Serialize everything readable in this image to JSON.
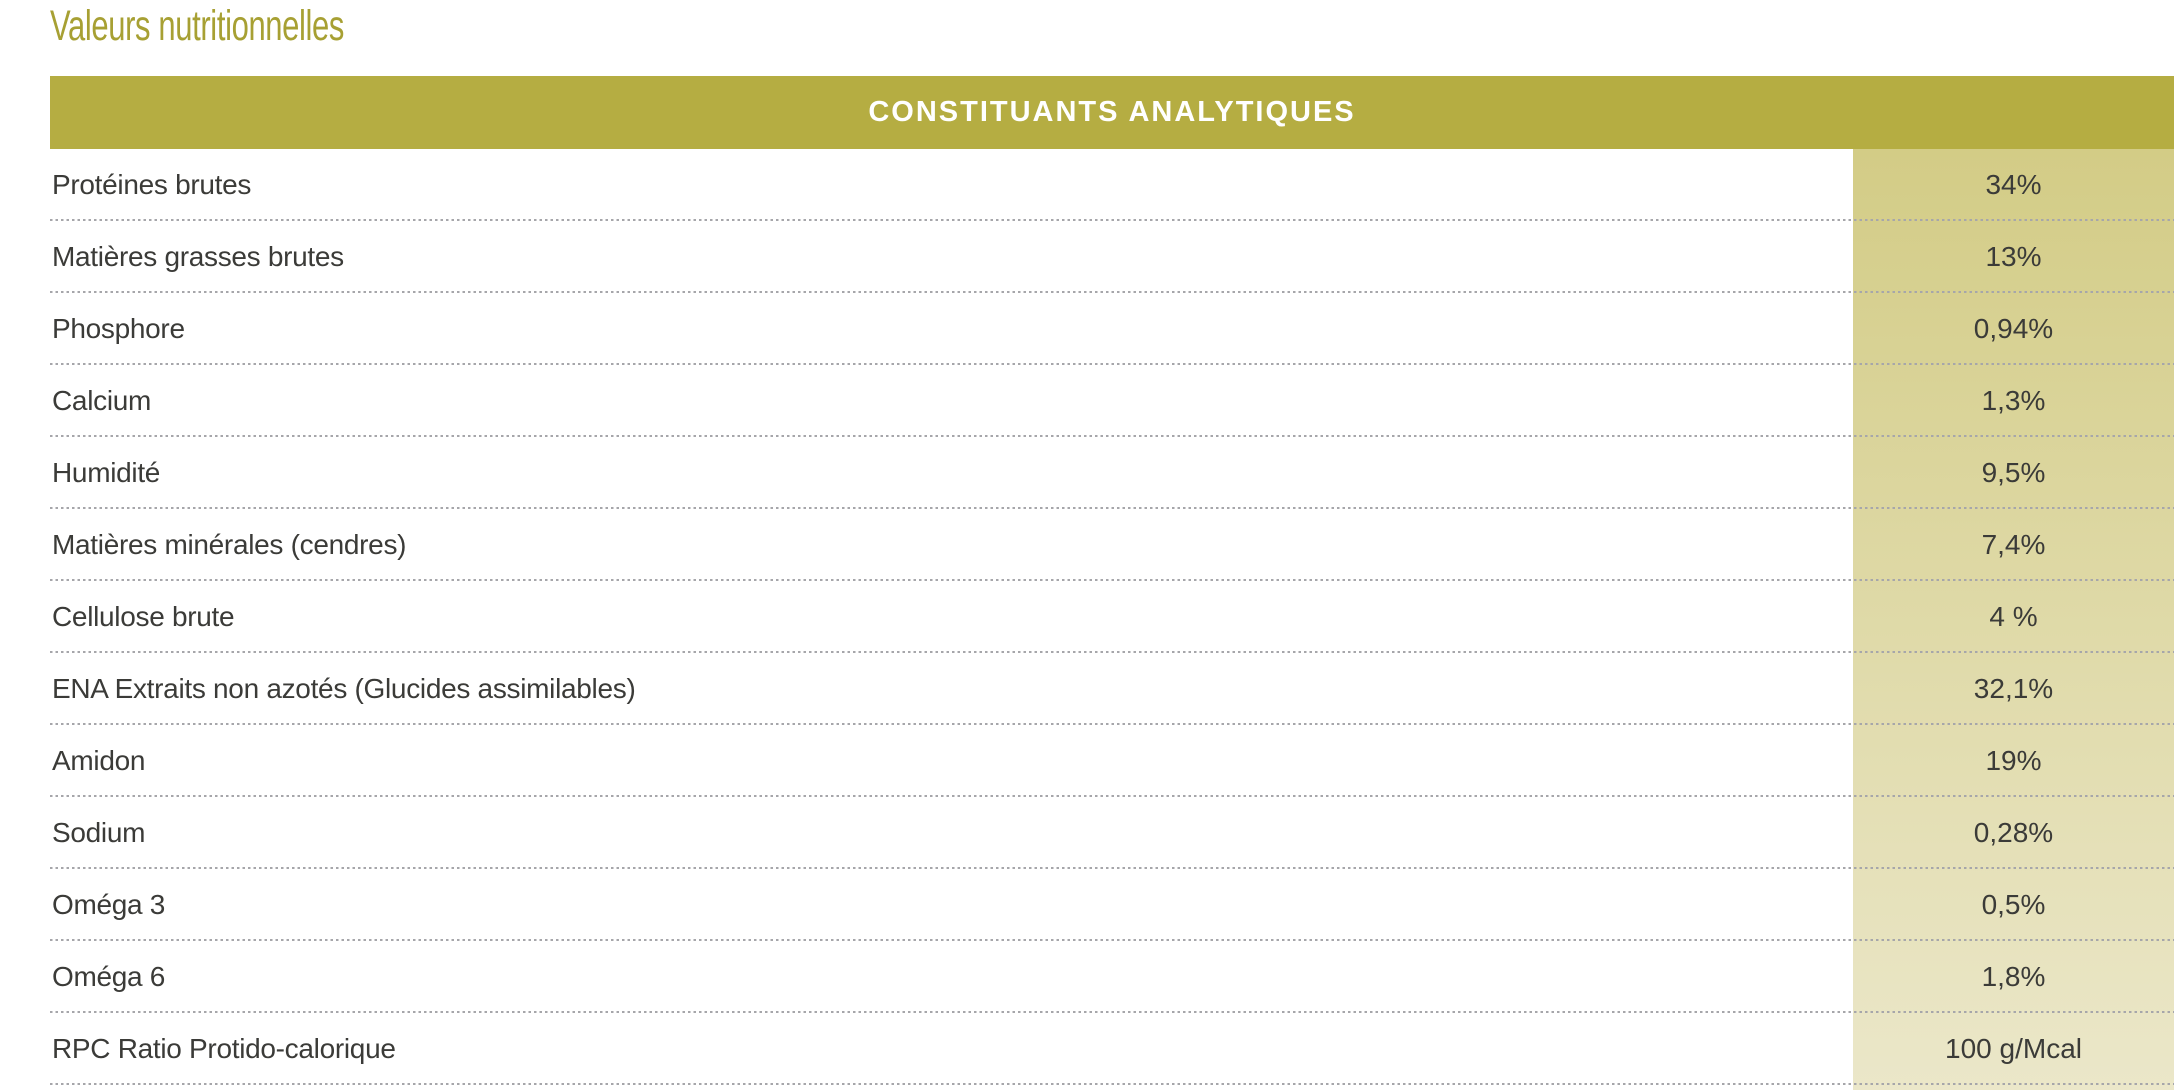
{
  "title": "Valeurs nutritionnelles",
  "table": {
    "header": "CONSTITUANTS ANALYTIQUES",
    "rows": [
      {
        "label": "Protéines brutes",
        "value": "34%"
      },
      {
        "label": "Matières grasses brutes",
        "value": "13%"
      },
      {
        "label": "Phosphore",
        "value": "0,94%"
      },
      {
        "label": "Calcium",
        "value": "1,3%"
      },
      {
        "label": "Humidité",
        "value": "9,5%"
      },
      {
        "label": "Matières minérales (cendres)",
        "value": "7,4%"
      },
      {
        "label": "Cellulose brute",
        "value": "4 %"
      },
      {
        "label": "ENA Extraits non azotés (Glucides assimilables)",
        "value": "32,1%"
      },
      {
        "label": "Amidon",
        "value": "19%"
      },
      {
        "label": "Sodium",
        "value": "0,28%"
      },
      {
        "label": "Oméga 3",
        "value": "0,5%"
      },
      {
        "label": "Oméga 6",
        "value": "1,8%"
      },
      {
        "label": "RPC Ratio Protido-calorique",
        "value": "100 g/Mcal"
      }
    ]
  },
  "colors": {
    "title_gold": "#a7a033",
    "header_bar_olive": "#b5ad42",
    "header_text": "#ffffff",
    "value_column_top": "#d3cc86",
    "value_column_bottom": "#ebe7c9",
    "separator_dotted_gray": "#a6a6aa",
    "body_text": "#3b3b38"
  }
}
